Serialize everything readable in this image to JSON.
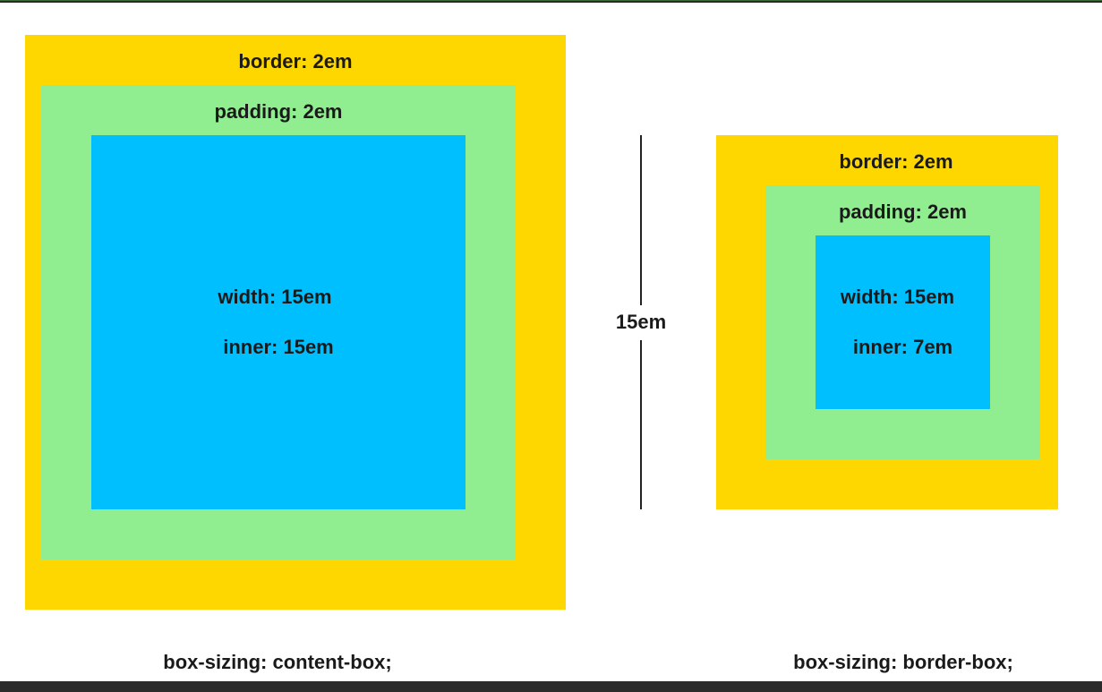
{
  "colors": {
    "border_area": "#FFD700",
    "padding_area": "#90EE90",
    "content_area": "#00BFFF"
  },
  "content_box": {
    "border_label": "border: 2em",
    "padding_label": "padding: 2em",
    "width_label": "width: 15em",
    "inner_label": "inner: 15em",
    "caption": "box-sizing: content-box;"
  },
  "measure": {
    "label": "15em"
  },
  "border_box": {
    "border_label": "border: 2em",
    "padding_label": "padding: 2em",
    "width_label": "width: 15em",
    "inner_label": "inner: 7em",
    "caption": "box-sizing: border-box;"
  }
}
